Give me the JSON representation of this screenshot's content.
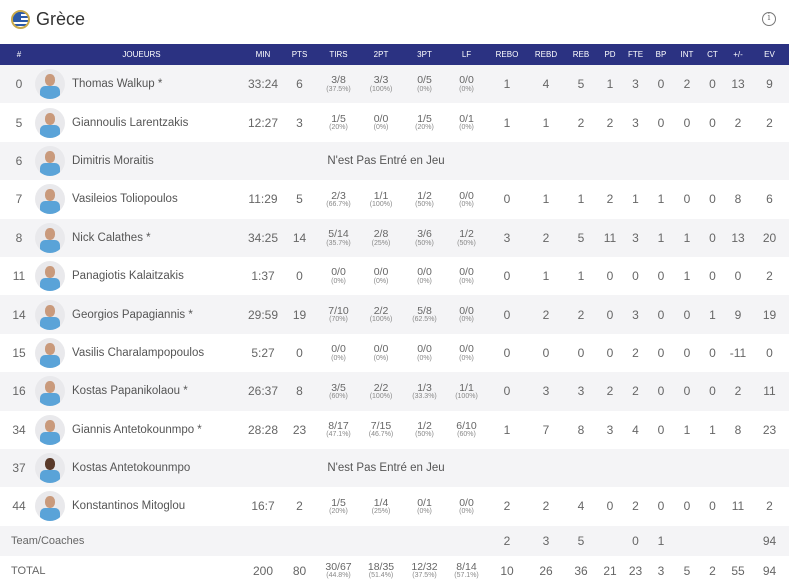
{
  "header": {
    "title": "Grèce",
    "flag_icon": "greece-flag-icon",
    "info_icon": "info-icon"
  },
  "columns": [
    "#",
    "JOUEURS",
    "MIN",
    "PTS",
    "TIRS",
    "2PT",
    "3PT",
    "LF",
    "REBO",
    "REBD",
    "REB",
    "PD",
    "FTE",
    "BP",
    "INT",
    "CT",
    "+/-",
    "EV"
  ],
  "colors": {
    "header_bg": "#2b3282",
    "alt_row": "#f4f4f6"
  },
  "players": [
    {
      "num": "0",
      "name": "Thomas Walkup *",
      "min": "33:24",
      "pts": "6",
      "tirs": [
        "3/8",
        "(37.5%)"
      ],
      "p2": [
        "3/3",
        "(100%)"
      ],
      "p3": [
        "0/5",
        "(0%)"
      ],
      "lf": [
        "0/0",
        "(0%)"
      ],
      "stats": [
        "1",
        "4",
        "5",
        "1",
        "3",
        "0",
        "2",
        "0",
        "13",
        "9"
      ]
    },
    {
      "num": "5",
      "name": "Giannoulis Larentzakis",
      "min": "12:27",
      "pts": "3",
      "tirs": [
        "1/5",
        "(20%)"
      ],
      "p2": [
        "0/0",
        "(0%)"
      ],
      "p3": [
        "1/5",
        "(20%)"
      ],
      "lf": [
        "0/1",
        "(0%)"
      ],
      "stats": [
        "1",
        "1",
        "2",
        "2",
        "3",
        "0",
        "0",
        "0",
        "2",
        "2"
      ]
    },
    {
      "num": "6",
      "name": "Dimitris Moraitis",
      "dnp": "N'est Pas Entré en Jeu"
    },
    {
      "num": "7",
      "name": "Vasileios Toliopoulos",
      "min": "11:29",
      "pts": "5",
      "tirs": [
        "2/3",
        "(66.7%)"
      ],
      "p2": [
        "1/1",
        "(100%)"
      ],
      "p3": [
        "1/2",
        "(50%)"
      ],
      "lf": [
        "0/0",
        "(0%)"
      ],
      "stats": [
        "0",
        "1",
        "1",
        "2",
        "1",
        "1",
        "0",
        "0",
        "8",
        "6"
      ]
    },
    {
      "num": "8",
      "name": "Nick Calathes *",
      "min": "34:25",
      "pts": "14",
      "tirs": [
        "5/14",
        "(35.7%)"
      ],
      "p2": [
        "2/8",
        "(25%)"
      ],
      "p3": [
        "3/6",
        "(50%)"
      ],
      "lf": [
        "1/2",
        "(50%)"
      ],
      "stats": [
        "3",
        "2",
        "5",
        "11",
        "3",
        "1",
        "1",
        "0",
        "13",
        "20"
      ]
    },
    {
      "num": "11",
      "name": "Panagiotis Kalaitzakis",
      "min": "1:37",
      "pts": "0",
      "tirs": [
        "0/0",
        "(0%)"
      ],
      "p2": [
        "0/0",
        "(0%)"
      ],
      "p3": [
        "0/0",
        "(0%)"
      ],
      "lf": [
        "0/0",
        "(0%)"
      ],
      "stats": [
        "0",
        "1",
        "1",
        "0",
        "0",
        "0",
        "1",
        "0",
        "0",
        "2"
      ]
    },
    {
      "num": "14",
      "name": "Georgios Papagiannis *",
      "min": "29:59",
      "pts": "19",
      "tirs": [
        "7/10",
        "(70%)"
      ],
      "p2": [
        "2/2",
        "(100%)"
      ],
      "p3": [
        "5/8",
        "(62.5%)"
      ],
      "lf": [
        "0/0",
        "(0%)"
      ],
      "stats": [
        "0",
        "2",
        "2",
        "0",
        "3",
        "0",
        "0",
        "1",
        "9",
        "19"
      ]
    },
    {
      "num": "15",
      "name": "Vasilis Charalampopoulos",
      "min": "5:27",
      "pts": "0",
      "tirs": [
        "0/0",
        "(0%)"
      ],
      "p2": [
        "0/0",
        "(0%)"
      ],
      "p3": [
        "0/0",
        "(0%)"
      ],
      "lf": [
        "0/0",
        "(0%)"
      ],
      "stats": [
        "0",
        "0",
        "0",
        "0",
        "2",
        "0",
        "0",
        "0",
        "-11",
        "0"
      ]
    },
    {
      "num": "16",
      "name": "Kostas Papanikolaou *",
      "min": "26:37",
      "pts": "8",
      "tirs": [
        "3/5",
        "(60%)"
      ],
      "p2": [
        "2/2",
        "(100%)"
      ],
      "p3": [
        "1/3",
        "(33.3%)"
      ],
      "lf": [
        "1/1",
        "(100%)"
      ],
      "stats": [
        "0",
        "3",
        "3",
        "2",
        "2",
        "0",
        "0",
        "0",
        "2",
        "11"
      ]
    },
    {
      "num": "34",
      "name": "Giannis Antetokounmpo *",
      "min": "28:28",
      "pts": "23",
      "tirs": [
        "8/17",
        "(47.1%)"
      ],
      "p2": [
        "7/15",
        "(46.7%)"
      ],
      "p3": [
        "1/2",
        "(50%)"
      ],
      "lf": [
        "6/10",
        "(60%)"
      ],
      "stats": [
        "1",
        "7",
        "8",
        "3",
        "4",
        "0",
        "1",
        "1",
        "8",
        "23"
      ]
    },
    {
      "num": "37",
      "name": "Kostas Antetokounmpo",
      "dnp": "N'est Pas Entré en Jeu",
      "dark": true
    },
    {
      "num": "44",
      "name": "Konstantinos Mitoglou",
      "min": "16:7",
      "pts": "2",
      "tirs": [
        "1/5",
        "(20%)"
      ],
      "p2": [
        "1/4",
        "(25%)"
      ],
      "p3": [
        "0/1",
        "(0%)"
      ],
      "lf": [
        "0/0",
        "(0%)"
      ],
      "stats": [
        "2",
        "2",
        "4",
        "0",
        "2",
        "0",
        "0",
        "0",
        "11",
        "2"
      ]
    }
  ],
  "team": {
    "label": "Team/Coaches",
    "stats": [
      "2",
      "3",
      "5",
      "",
      "0",
      "1",
      "",
      "",
      "",
      "94"
    ]
  },
  "total": {
    "label": "TOTAL",
    "min": "200",
    "pts": "80",
    "tirs": [
      "30/67",
      "(44.8%)"
    ],
    "p2": [
      "18/35",
      "(51.4%)"
    ],
    "p3": [
      "12/32",
      "(37.5%)"
    ],
    "lf": [
      "8/14",
      "(57.1%)"
    ],
    "stats": [
      "10",
      "26",
      "36",
      "21",
      "23",
      "3",
      "5",
      "2",
      "55",
      "94"
    ]
  }
}
